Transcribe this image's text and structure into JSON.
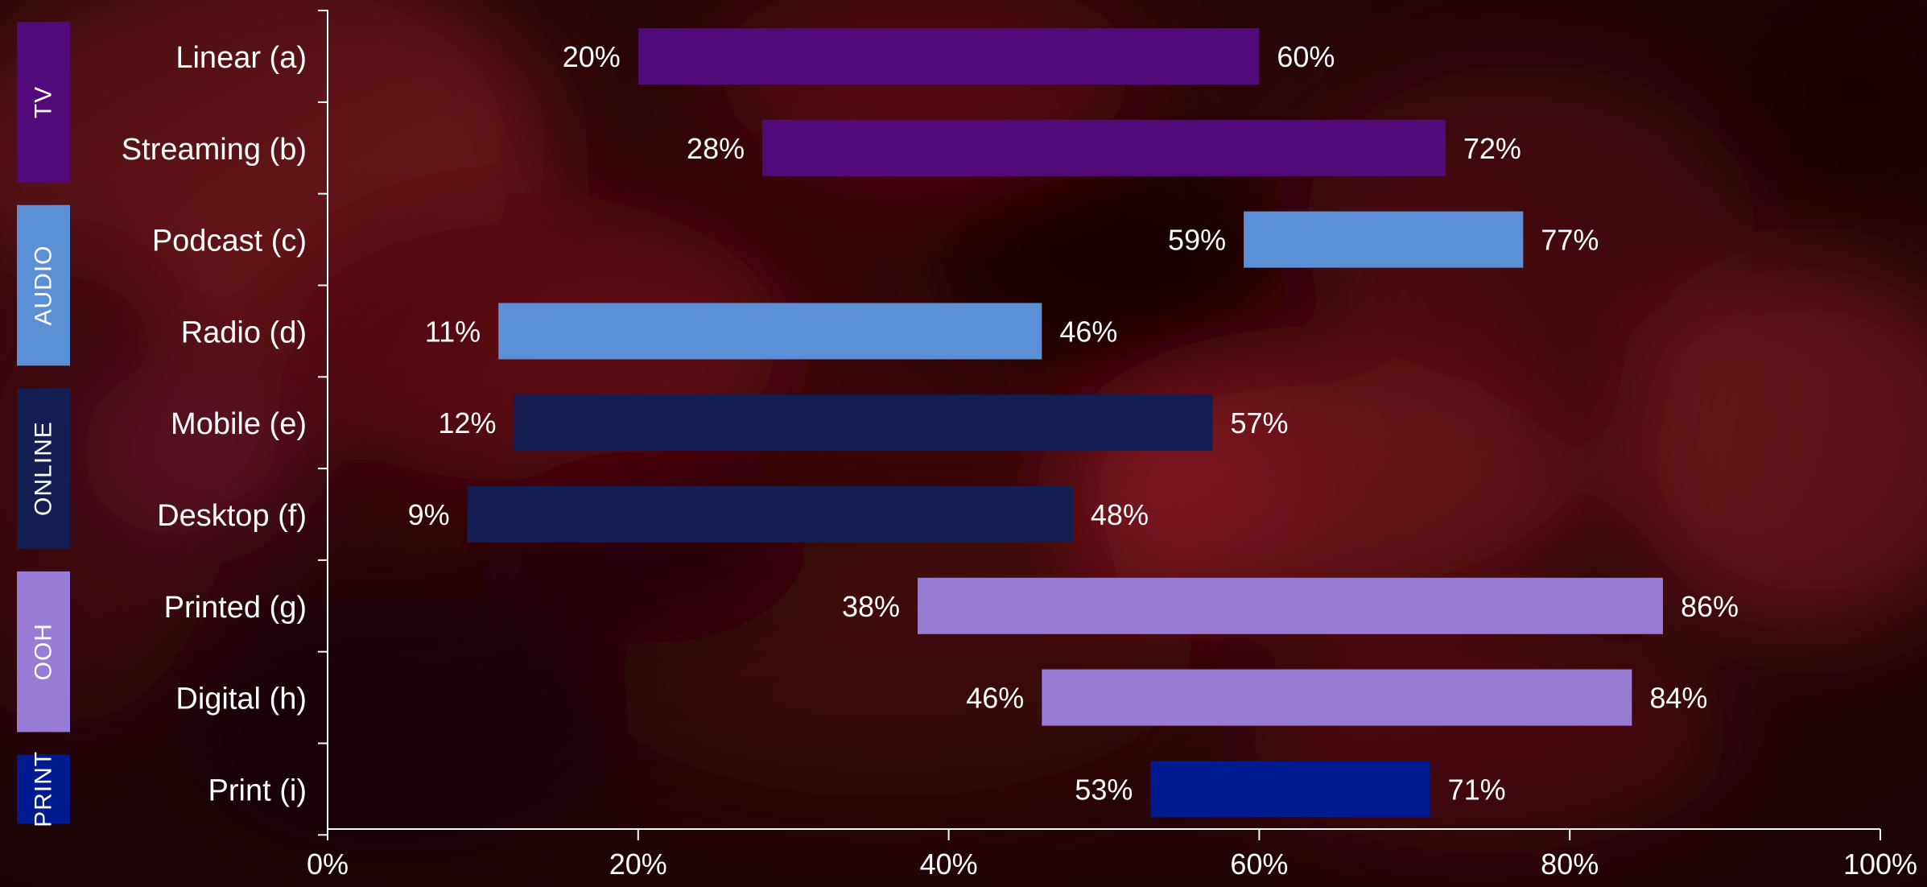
{
  "chart_data": {
    "type": "bar",
    "orientation": "horizontal",
    "subtype": "floating-range",
    "categories": [
      "Linear (a)",
      "Streaming (b)",
      "Podcast (c)",
      "Radio (d)",
      "Mobile (e)",
      "Desktop (f)",
      "Printed (g)",
      "Digital (h)",
      "Print (i)"
    ],
    "ranges": [
      {
        "category": "Linear (a)",
        "group": "TV",
        "low": 20,
        "high": 60,
        "low_label": "20%",
        "high_label": "60%"
      },
      {
        "category": "Streaming (b)",
        "group": "TV",
        "low": 28,
        "high": 72,
        "low_label": "28%",
        "high_label": "72%"
      },
      {
        "category": "Podcast (c)",
        "group": "AUDIO",
        "low": 59,
        "high": 77,
        "low_label": "59%",
        "high_label": "77%"
      },
      {
        "category": "Radio (d)",
        "group": "AUDIO",
        "low": 11,
        "high": 46,
        "low_label": "11%",
        "high_label": "46%"
      },
      {
        "category": "Mobile (e)",
        "group": "ONLINE",
        "low": 12,
        "high": 57,
        "low_label": "12%",
        "high_label": "57%"
      },
      {
        "category": "Desktop (f)",
        "group": "ONLINE",
        "low": 9,
        "high": 48,
        "low_label": "9%",
        "high_label": "48%"
      },
      {
        "category": "Printed (g)",
        "group": "OOH",
        "low": 38,
        "high": 86,
        "low_label": "38%",
        "high_label": "86%"
      },
      {
        "category": "Digital (h)",
        "group": "OOH",
        "low": 46,
        "high": 84,
        "low_label": "46%",
        "high_label": "84%"
      },
      {
        "category": "Print (i)",
        "group": "PRINT",
        "low": 53,
        "high": 71,
        "low_label": "53%",
        "high_label": "71%"
      }
    ],
    "groups": [
      {
        "label": "TV",
        "color": "#520a7a",
        "categories": [
          "Linear (a)",
          "Streaming (b)"
        ]
      },
      {
        "label": "AUDIO",
        "color": "#5b8fd6",
        "categories": [
          "Podcast (c)",
          "Radio (d)"
        ]
      },
      {
        "label": "ONLINE",
        "color": "#141e52",
        "categories": [
          "Mobile (e)",
          "Desktop (f)"
        ]
      },
      {
        "label": "OOH",
        "color": "#977bd4",
        "categories": [
          "Printed (g)",
          "Digital (h)"
        ]
      },
      {
        "label": "PRINT",
        "color": "#001a8f",
        "categories": [
          "Print (i)"
        ]
      }
    ],
    "x_ticks": [
      "0%",
      "20%",
      "40%",
      "60%",
      "80%",
      "100%"
    ],
    "xlim": [
      0,
      100
    ],
    "title": "",
    "xlabel": "",
    "ylabel": "",
    "grid": false,
    "legend": "none",
    "background": "blurred dark red photo",
    "axis_color": "#ffffff",
    "text_color": "#ffffff"
  }
}
